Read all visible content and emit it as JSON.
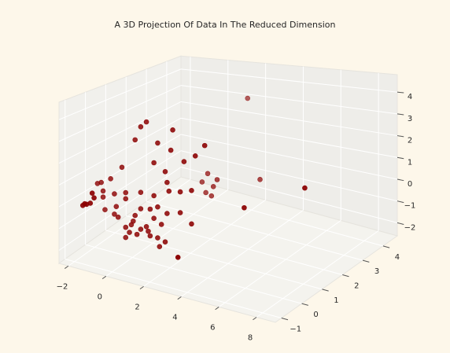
{
  "chart_data": {
    "type": "scatter3d",
    "title": "A 3D Projection Of Data In The Reduced Dimension",
    "x": [
      1.8,
      3.0,
      7.0,
      5.4,
      3.5,
      -0.1,
      0.2,
      -0.4,
      1.6,
      0.8,
      1.5,
      -1.1,
      0.6,
      1.2,
      2.2,
      2.8,
      3.3,
      1.3,
      1.6,
      1.8,
      1.0,
      1.2,
      1.5,
      2.6,
      2.0,
      1.4,
      1.3,
      0.6,
      -0.1,
      -0.9,
      -1.5,
      -2.1,
      -2.4,
      -2.0,
      -1.4,
      -0.9,
      -0.1,
      0.4,
      0.8,
      1.3,
      2.0,
      2.6,
      1.0,
      0.8,
      1.2,
      0.9,
      0.4,
      -0.1,
      -0.6,
      -0.9,
      -0.9,
      -0.3,
      0.2,
      -1.3,
      -1.5,
      -0.4,
      -2.1,
      -2.2,
      -1.7,
      -0.7,
      0.3,
      -0.5,
      0.6,
      -1.5,
      -1.9,
      -2.0,
      -1.7,
      -1.6,
      -2.1
    ],
    "y": [
      4.0,
      3.5,
      2.0,
      0.5,
      -1.0,
      0.5,
      0.5,
      0.5,
      0.5,
      0.5,
      0.5,
      0.5,
      0.5,
      0.5,
      0.5,
      0.5,
      0.5,
      2.5,
      2.5,
      2.5,
      2.5,
      2.5,
      2.5,
      0.5,
      0.5,
      0.5,
      0.5,
      0.5,
      0.5,
      0.5,
      0.5,
      0.5,
      0.5,
      0.5,
      0.5,
      0.5,
      0.5,
      0.5,
      0.5,
      0.5,
      0.5,
      0.5,
      0.5,
      0.5,
      0.5,
      0.5,
      0.5,
      0.5,
      0.5,
      0.5,
      0.5,
      0.5,
      0.5,
      0.5,
      0.5,
      0.5,
      0.5,
      0.5,
      0.5,
      0.5,
      0.5,
      0.5,
      0.5,
      -0.5,
      -0.5,
      -0.5,
      -0.5,
      -0.5,
      -0.5
    ],
    "z": [
      3.3,
      -0.4,
      1.0,
      0.7,
      -1.1,
      3.4,
      3.7,
      2.7,
      3.6,
      2.8,
      2.6,
      1.2,
      1.8,
      1.5,
      2.2,
      2.6,
      3.2,
      0.2,
      -0.4,
      0.0,
      -0.3,
      -0.8,
      -0.9,
      0.9,
      0.7,
      0.6,
      1.0,
      0.2,
      0.2,
      0.0,
      -0.2,
      -0.2,
      0.1,
      -1.1,
      -0.8,
      -0.3,
      -0.6,
      -0.5,
      -0.3,
      -0.5,
      -0.3,
      -0.7,
      -1.1,
      -1.8,
      -1.9,
      -2.2,
      -1.8,
      -1.6,
      -1.5,
      -1.7,
      -2.2,
      -1.9,
      -1.4,
      -1.3,
      -1.2,
      -1.0,
      -0.5,
      0.2,
      0.5,
      -1.9,
      -1.6,
      -1.3,
      -0.9,
      0.2,
      -0.2,
      -0.2,
      -0.1,
      0.4,
      -0.3
    ],
    "color": "#8b0000",
    "xlim": [
      -2.5,
      9
    ],
    "ylim": [
      -1.3,
      4.7
    ],
    "zlim": [
      -2.6,
      4.8
    ],
    "xticks": [
      {
        "value": -2,
        "label": "−2"
      },
      0,
      2,
      4,
      6,
      8
    ],
    "yticks": [
      {
        "value": -1,
        "label": "−1"
      },
      0,
      1,
      2,
      3,
      4
    ],
    "zticks": [
      {
        "value": -2,
        "label": "−2"
      },
      {
        "value": -1,
        "label": "−1"
      },
      0,
      1,
      2,
      3,
      4
    ],
    "grid": true
  }
}
